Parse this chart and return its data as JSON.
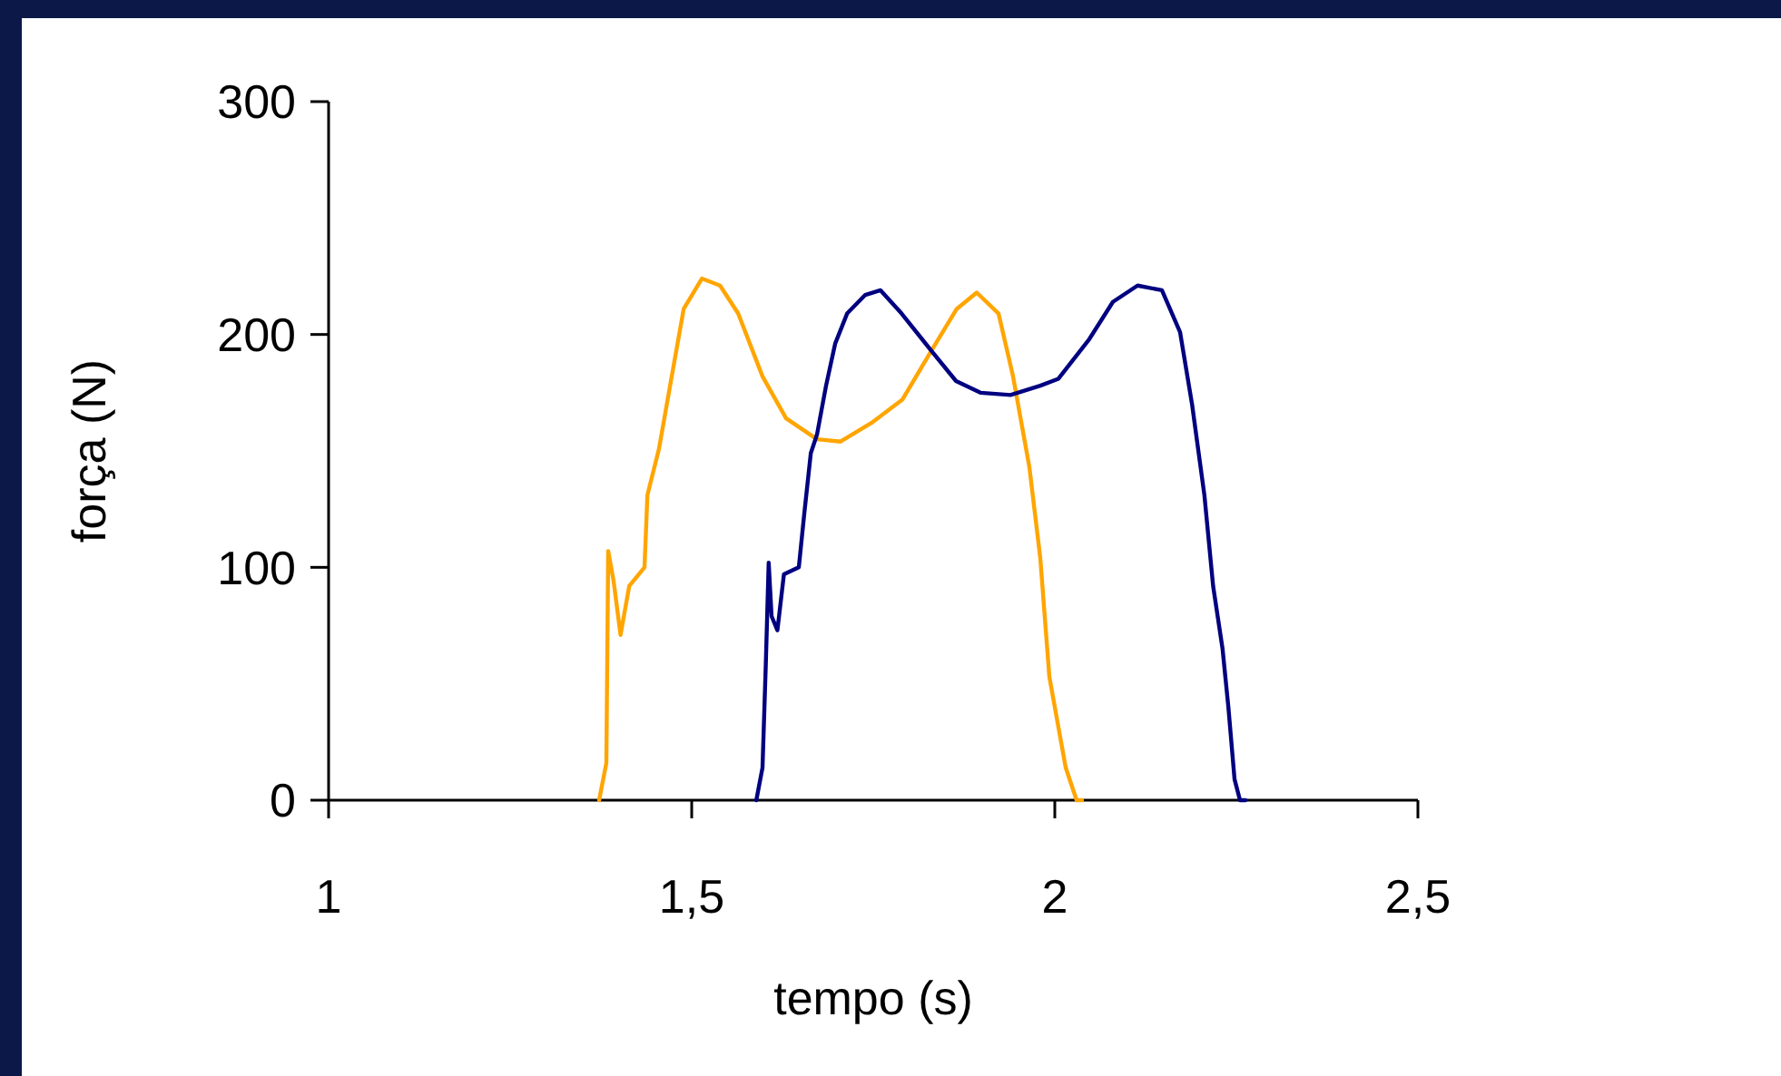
{
  "chart_data": {
    "type": "line",
    "xlabel": "tempo (s)",
    "ylabel": "força (N)",
    "xlim": [
      1,
      2.5
    ],
    "xticks": [
      1,
      {
        "value": 1.5,
        "label": "1,5"
      },
      2,
      {
        "value": 2.5,
        "label": "2,5"
      }
    ],
    "ylim": [
      0,
      300
    ],
    "yticks": [
      0,
      100,
      200,
      300
    ],
    "marker": "none",
    "line_style": "solid",
    "series": [
      {
        "color": "#ffa500",
        "x": [
          1.3725,
          1.3825,
          1.385,
          1.3925,
          1.402,
          1.414,
          1.435,
          1.439,
          1.455,
          1.4725,
          1.489,
          1.514,
          1.539,
          1.564,
          1.5975,
          1.63,
          1.6725,
          1.705,
          1.7475,
          1.79,
          1.83,
          1.865,
          1.8925,
          1.9225,
          1.9425,
          1.965,
          1.98,
          1.9925,
          2.015,
          2.03,
          2.0375
        ],
        "values": [
          0,
          16,
          107,
          94,
          71,
          92,
          100,
          131,
          151,
          182,
          211,
          224,
          221,
          209,
          182,
          164,
          155,
          154,
          162,
          172,
          193,
          211,
          218,
          209,
          182,
          143,
          104,
          53,
          14,
          0,
          0
        ]
      },
      {
        "color": "#000080",
        "x": [
          1.589,
          1.5975,
          1.602,
          1.606,
          1.61,
          1.618,
          1.627,
          1.6475,
          1.655,
          1.664,
          1.6725,
          1.685,
          1.6975,
          1.714,
          1.739,
          1.76,
          1.789,
          1.83,
          1.864,
          1.8975,
          1.939,
          1.98,
          2.005,
          2.0475,
          2.08,
          2.114,
          2.1475,
          2.1725,
          2.189,
          2.206,
          2.218,
          2.231,
          2.239,
          2.2475,
          2.255,
          2.2625
        ],
        "values": [
          0,
          14,
          58,
          102,
          79,
          73,
          97,
          100,
          123,
          149,
          157,
          178,
          196,
          209,
          217,
          219,
          209,
          193,
          180,
          175,
          174,
          178,
          181,
          198,
          214,
          221,
          219,
          201,
          170,
          131,
          92,
          65,
          40,
          9,
          0,
          0
        ]
      }
    ]
  }
}
